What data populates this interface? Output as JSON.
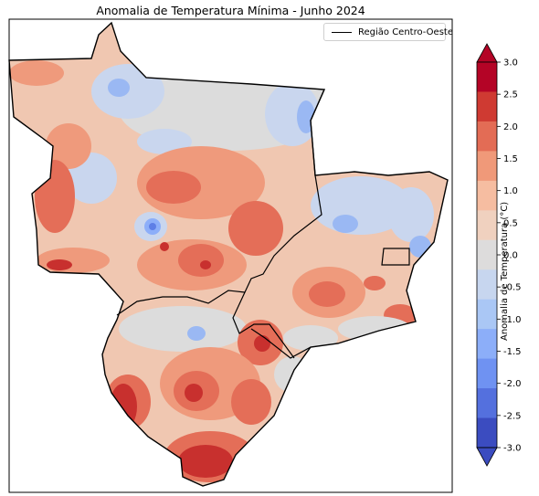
{
  "title": "Anomalia de Temperatura Mínima - Junho 2024",
  "legend": {
    "line_label": "Região Centro-Oeste",
    "line_color": "#000000"
  },
  "colorbar": {
    "label": "Anomalia de Temperatura (°C)",
    "ticks": [
      "3.0",
      "2.5",
      "2.0",
      "1.5",
      "1.0",
      "0.5",
      "0.0",
      "-0.5",
      "-1.0",
      "-1.5",
      "-2.0",
      "-2.5",
      "-3.0"
    ],
    "colors_top_to_bottom": [
      "#b40426",
      "#cf3a32",
      "#e36c55",
      "#f09979",
      "#f6bda1",
      "#f0d1bf",
      "#dddcdc",
      "#c7d6ef",
      "#aac7f5",
      "#8caef9",
      "#6f92f2",
      "#5470de",
      "#3b4cc0"
    ],
    "extend_max_color": "#b40426",
    "extend_min_color": "#3b4cc0"
  },
  "palette": {
    "strong_warm": "#c8302e",
    "warm": "#e46e58",
    "mild_warm": "#ef9a7c",
    "light_warm": "#f5c0a6",
    "neutral": "#dcdcdc",
    "light_cool": "#c9d6ee",
    "cool": "#9ab8f3",
    "strong_cool": "#5e7fe6"
  }
}
